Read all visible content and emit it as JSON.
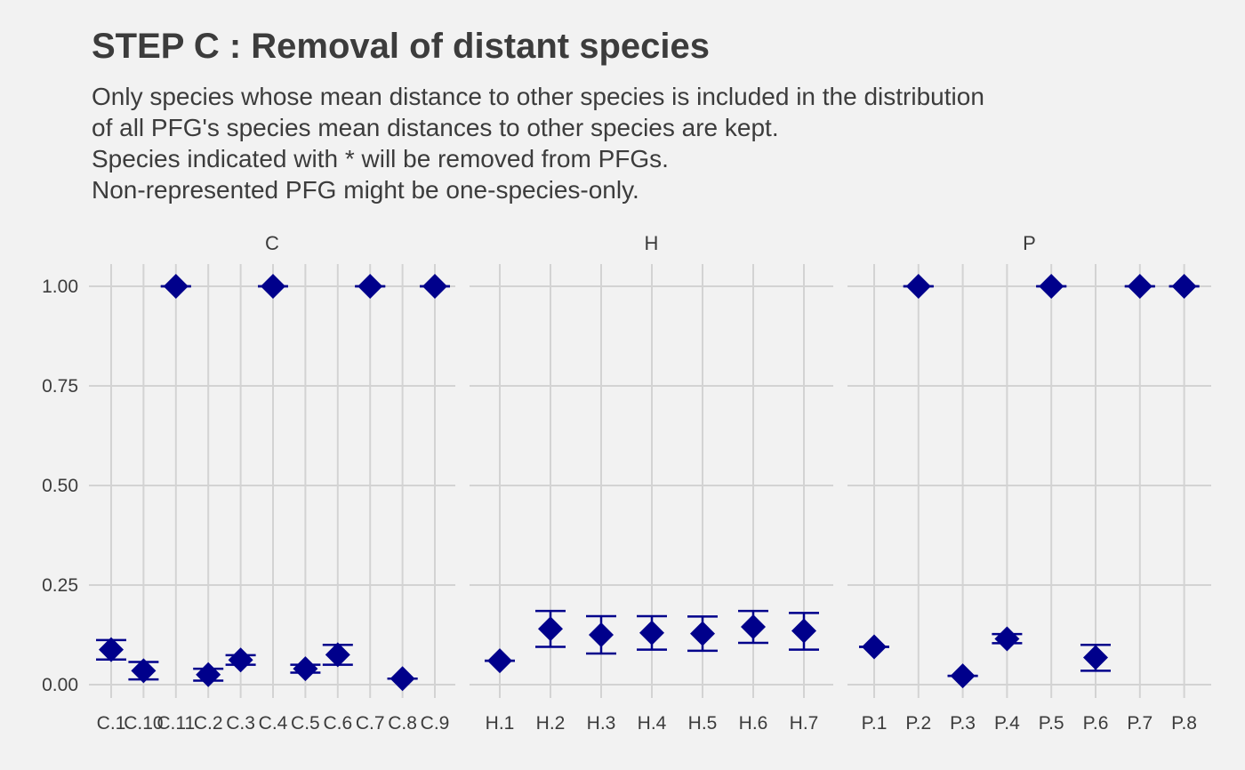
{
  "title": "STEP C : Removal of distant species",
  "subtitle_lines": [
    "Only species whose mean distance to other species is included in the distribution",
    "of all PFG's species mean distances to other species are kept.",
    "Species indicated with * will be removed from PFGs.",
    "Non-represented PFG might be one-species-only."
  ],
  "colors": {
    "background": "#f2f2f2",
    "grid": "#d3d3d3",
    "point": "#00008b",
    "text": "#3c3c3c"
  },
  "chart_data": {
    "type": "scatter",
    "marker": "diamond",
    "error_bars": true,
    "xlabel": "",
    "ylabel": "",
    "ylim": [
      0,
      1
    ],
    "yticks": [
      0.0,
      0.25,
      0.5,
      0.75,
      1.0
    ],
    "ytick_labels": [
      "0.00",
      "0.25",
      "0.50",
      "0.75",
      "1.00"
    ],
    "grid": true,
    "facets": [
      {
        "name": "C",
        "categories": [
          "C.1",
          "C.10",
          "C.11",
          "C.2",
          "C.3",
          "C.4",
          "C.5",
          "C.6",
          "C.7",
          "C.8",
          "C.9"
        ],
        "points": [
          {
            "x": "C.1",
            "y": 0.088,
            "ymin": 0.063,
            "ymax": 0.112
          },
          {
            "x": "C.10",
            "y": 0.035,
            "ymin": 0.013,
            "ymax": 0.057
          },
          {
            "x": "C.11",
            "y": 1.0,
            "ymin": 1.0,
            "ymax": 1.0
          },
          {
            "x": "C.2",
            "y": 0.025,
            "ymin": 0.01,
            "ymax": 0.04
          },
          {
            "x": "C.3",
            "y": 0.062,
            "ymin": 0.05,
            "ymax": 0.074
          },
          {
            "x": "C.4",
            "y": 1.0,
            "ymin": 1.0,
            "ymax": 1.0
          },
          {
            "x": "C.5",
            "y": 0.04,
            "ymin": 0.03,
            "ymax": 0.05
          },
          {
            "x": "C.6",
            "y": 0.075,
            "ymin": 0.05,
            "ymax": 0.1
          },
          {
            "x": "C.7",
            "y": 1.0,
            "ymin": 1.0,
            "ymax": 1.0
          },
          {
            "x": "C.8",
            "y": 0.015,
            "ymin": 0.015,
            "ymax": 0.015
          },
          {
            "x": "C.9",
            "y": 1.0,
            "ymin": 1.0,
            "ymax": 1.0
          }
        ]
      },
      {
        "name": "H",
        "categories": [
          "H.1",
          "H.2",
          "H.3",
          "H.4",
          "H.5",
          "H.6",
          "H.7"
        ],
        "points": [
          {
            "x": "H.1",
            "y": 0.06,
            "ymin": 0.06,
            "ymax": 0.06
          },
          {
            "x": "H.2",
            "y": 0.14,
            "ymin": 0.095,
            "ymax": 0.185
          },
          {
            "x": "H.3",
            "y": 0.125,
            "ymin": 0.078,
            "ymax": 0.172
          },
          {
            "x": "H.4",
            "y": 0.13,
            "ymin": 0.088,
            "ymax": 0.172
          },
          {
            "x": "H.5",
            "y": 0.128,
            "ymin": 0.085,
            "ymax": 0.171
          },
          {
            "x": "H.6",
            "y": 0.145,
            "ymin": 0.105,
            "ymax": 0.185
          },
          {
            "x": "H.7",
            "y": 0.135,
            "ymin": 0.088,
            "ymax": 0.18
          }
        ]
      },
      {
        "name": "P",
        "categories": [
          "P.1",
          "P.2",
          "P.3",
          "P.4",
          "P.5",
          "P.6",
          "P.7",
          "P.8"
        ],
        "points": [
          {
            "x": "P.1",
            "y": 0.095,
            "ymin": 0.095,
            "ymax": 0.095
          },
          {
            "x": "P.2",
            "y": 1.0,
            "ymin": 1.0,
            "ymax": 1.0
          },
          {
            "x": "P.3",
            "y": 0.022,
            "ymin": 0.022,
            "ymax": 0.022
          },
          {
            "x": "P.4",
            "y": 0.115,
            "ymin": 0.104,
            "ymax": 0.127
          },
          {
            "x": "P.5",
            "y": 1.0,
            "ymin": 1.0,
            "ymax": 1.0
          },
          {
            "x": "P.6",
            "y": 0.068,
            "ymin": 0.035,
            "ymax": 0.1
          },
          {
            "x": "P.7",
            "y": 1.0,
            "ymin": 1.0,
            "ymax": 1.0
          },
          {
            "x": "P.8",
            "y": 1.0,
            "ymin": 1.0,
            "ymax": 1.0
          }
        ]
      }
    ]
  }
}
